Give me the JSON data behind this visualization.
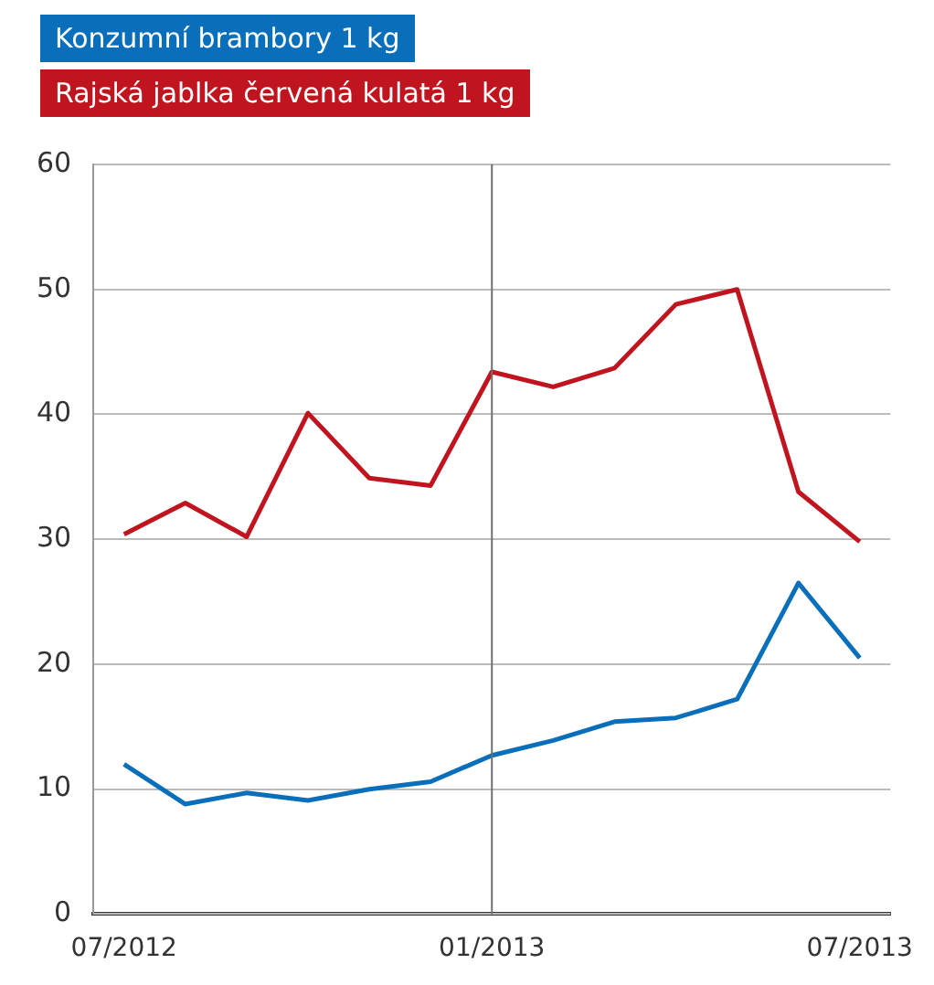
{
  "chart_data": {
    "type": "line",
    "categories": [
      "07/2012",
      null,
      null,
      null,
      null,
      null,
      "01/2013",
      null,
      null,
      null,
      null,
      null,
      "07/2013"
    ],
    "series": [
      {
        "name": "Konzumní brambory 1 kg",
        "color": "#0a6fba",
        "values": [
          12.0,
          8.8,
          9.7,
          9.1,
          10.0,
          10.6,
          12.7,
          13.9,
          15.4,
          15.7,
          17.2,
          26.5,
          20.5
        ]
      },
      {
        "name": "Rajská jablka červená kulatá 1 kg",
        "color": "#c0141e",
        "values": [
          30.4,
          32.9,
          30.2,
          40.1,
          34.9,
          34.3,
          43.4,
          42.2,
          43.7,
          48.8,
          50.0,
          33.8,
          29.8
        ]
      }
    ],
    "ylim": [
      0,
      60
    ],
    "yticks": [
      0,
      10,
      20,
      30,
      40,
      50,
      60
    ],
    "grid": "y",
    "legend": "top left",
    "marker": "none",
    "line_style": "solid",
    "ref_lines": [
      {
        "axis": "x",
        "value": "01/2013",
        "color": "#707070"
      }
    ]
  }
}
